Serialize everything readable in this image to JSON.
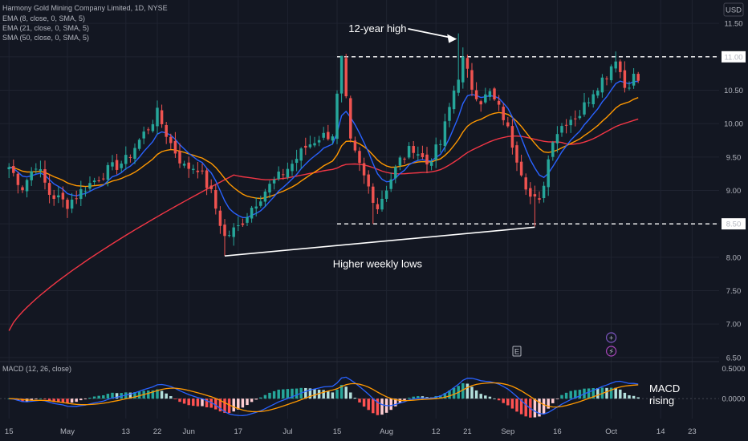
{
  "chart_data": {
    "type": "candlestick",
    "legend": {
      "symbol_line": "Harmony Gold Mining Company Limited, 1D, NYSE",
      "indicators": [
        "EMA (8, close, 0, SMA, 5)",
        "EMA (21, close, 0, SMA, 5)",
        "SMA (50, close, 0, SMA, 5)"
      ]
    },
    "currency": "USD",
    "price_axis": {
      "range": [
        6.45,
        11.85
      ],
      "ticks": [
        "11.50",
        "11.00",
        "10.50",
        "10.00",
        "9.50",
        "9.00",
        "8.50",
        "8.00",
        "7.50",
        "7.00",
        "6.50"
      ],
      "tick_values": [
        11.5,
        11.0,
        10.5,
        10.0,
        9.5,
        9.0,
        8.5,
        8.0,
        7.5,
        7.0,
        6.5
      ],
      "highlight_labels": [
        "11.00",
        "8.50"
      ],
      "highlight_values": [
        11.0,
        8.5
      ]
    },
    "time_axis": {
      "labels": [
        "15",
        "May",
        "13",
        "22",
        "Jun",
        "17",
        "Jul",
        "15",
        "Aug",
        "12",
        "21",
        "Sep",
        "16",
        "Oct",
        "14",
        "23"
      ],
      "label_bars": [
        0,
        13,
        26,
        33,
        40,
        51,
        62,
        73,
        84,
        95,
        102,
        111,
        122,
        134,
        145,
        152
      ],
      "bar_count": 157,
      "visible_bars": [
        -2,
        158
      ]
    },
    "levels": [
      {
        "price": 11.0,
        "style": "dashed",
        "from_bar": 73
      },
      {
        "price": 8.5,
        "style": "dashed",
        "from_bar": 73
      }
    ],
    "trendline": {
      "start_bar": 48,
      "start_price": 8.02,
      "end_bar": 117,
      "end_price": 8.45
    },
    "annotations": [
      {
        "text": "12-year high",
        "bar": 82,
        "price": 11.42,
        "arrow_to_bar": 100,
        "arrow_to_price": 11.35
      },
      {
        "text": "Higher weekly lows",
        "bar": 82,
        "price": 7.93
      },
      {
        "text": "MACD rising",
        "lines": [
          "MACD",
          "rising"
        ]
      }
    ],
    "events": [
      {
        "type": "earnings",
        "label": "E",
        "bar": 113
      },
      {
        "type": "dividend",
        "label": "+",
        "bar": 134
      },
      {
        "type": "split",
        "label": "⚡",
        "bar": 134
      }
    ],
    "macd": {
      "legend": "MACD (12, 26, close)",
      "ticks": [
        "0.5000",
        "0.0000"
      ],
      "tick_values": [
        0.5,
        0.0
      ],
      "range": [
        -0.33,
        0.6
      ]
    },
    "colors": {
      "up": "#26a69a",
      "down": "#ef5350",
      "ema8": "#2962ff",
      "ema21": "#ff9800",
      "sma50": "#f23645",
      "macd_line": "#2962ff",
      "signal_line": "#ff9800"
    }
  }
}
